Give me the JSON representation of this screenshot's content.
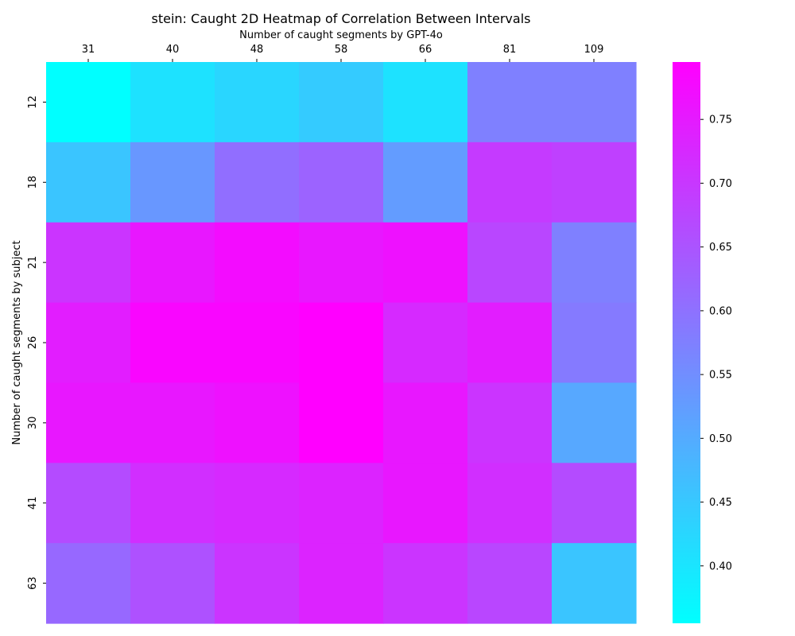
{
  "chart_data": {
    "type": "heatmap",
    "title": "stein: Caught 2D Heatmap of Correlation Between Intervals",
    "xlabel": "Number of caught segments by GPT-4o",
    "ylabel": "Number of caught segments by subject",
    "x_categories": [
      "31",
      "40",
      "48",
      "58",
      "66",
      "81",
      "109"
    ],
    "y_categories": [
      "12",
      "18",
      "21",
      "26",
      "30",
      "41",
      "63"
    ],
    "values": [
      [
        0.355,
        0.405,
        0.425,
        0.445,
        0.405,
        0.575,
        0.575
      ],
      [
        0.455,
        0.535,
        0.605,
        0.625,
        0.525,
        0.695,
        0.685
      ],
      [
        0.705,
        0.755,
        0.775,
        0.755,
        0.765,
        0.675,
        0.575
      ],
      [
        0.745,
        0.785,
        0.785,
        0.795,
        0.725,
        0.745,
        0.585
      ],
      [
        0.755,
        0.755,
        0.765,
        0.795,
        0.755,
        0.705,
        0.505
      ],
      [
        0.665,
        0.715,
        0.725,
        0.735,
        0.755,
        0.715,
        0.665
      ],
      [
        0.615,
        0.655,
        0.705,
        0.735,
        0.705,
        0.675,
        0.455
      ]
    ],
    "colormap": "cool",
    "color_min": "#00ffff",
    "color_max": "#ff00ff",
    "vmin": 0.355,
    "vmax": 0.795,
    "colorbar_ticks": [
      "0.40",
      "0.45",
      "0.50",
      "0.55",
      "0.60",
      "0.65",
      "0.70",
      "0.75"
    ],
    "x_axis_position": "top",
    "grid": false,
    "colorbar_position": "right"
  }
}
